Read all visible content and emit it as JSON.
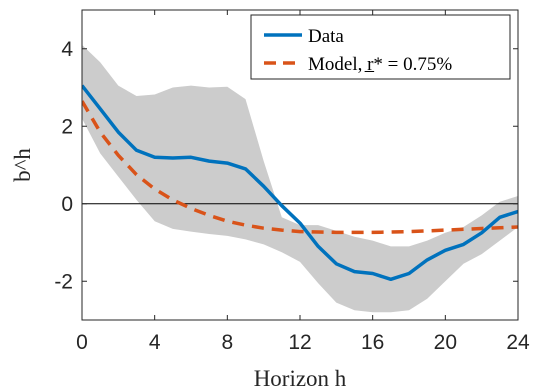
{
  "chart_data": {
    "type": "line",
    "xlabel": "Horizon h",
    "ylabel": "b^h",
    "xlim": [
      0,
      24
    ],
    "ylim": [
      -3,
      5
    ],
    "xticks": [
      0,
      4,
      8,
      12,
      16,
      20,
      24
    ],
    "xtick_labels": [
      "0",
      "4",
      "8",
      "12",
      "16",
      "20",
      "24"
    ],
    "yticks": [
      -2,
      0,
      2,
      4
    ],
    "ytick_labels": [
      "-2",
      "0",
      "2",
      "4"
    ],
    "grid": false,
    "legend_position": "top-right",
    "zero_line": 0,
    "x": [
      0,
      1,
      2,
      3,
      4,
      5,
      6,
      7,
      8,
      9,
      10,
      11,
      12,
      13,
      14,
      15,
      16,
      17,
      18,
      19,
      20,
      21,
      22,
      23,
      24
    ],
    "series": [
      {
        "name": "Data",
        "style": "solid",
        "color": "#0072BD",
        "values": [
          3.05,
          2.45,
          1.85,
          1.38,
          1.2,
          1.18,
          1.2,
          1.1,
          1.05,
          0.9,
          0.45,
          -0.05,
          -0.5,
          -1.1,
          -1.55,
          -1.75,
          -1.8,
          -1.95,
          -1.8,
          -1.45,
          -1.2,
          -1.05,
          -0.75,
          -0.35,
          -0.2
        ]
      },
      {
        "name": "Model, r̲* = 0.75%",
        "style": "dashed",
        "color": "#D95319",
        "values": [
          2.65,
          1.85,
          1.25,
          0.75,
          0.38,
          0.1,
          -0.12,
          -0.3,
          -0.45,
          -0.55,
          -0.63,
          -0.68,
          -0.72,
          -0.73,
          -0.74,
          -0.74,
          -0.74,
          -0.73,
          -0.72,
          -0.7,
          -0.68,
          -0.66,
          -0.64,
          -0.62,
          -0.6
        ]
      }
    ],
    "band": {
      "color": "#CCCCCC",
      "upper": [
        4.1,
        3.65,
        3.05,
        2.78,
        2.82,
        3.0,
        3.05,
        3.0,
        3.02,
        2.7,
        1.1,
        -0.35,
        -0.55,
        -0.55,
        -0.7,
        -0.85,
        -0.95,
        -1.1,
        -1.1,
        -0.95,
        -0.75,
        -0.6,
        -0.3,
        0.05,
        0.2
      ],
      "lower": [
        2.2,
        1.3,
        0.7,
        0.1,
        -0.45,
        -0.65,
        -0.72,
        -0.78,
        -0.83,
        -0.92,
        -1.05,
        -1.25,
        -1.5,
        -2.05,
        -2.55,
        -2.75,
        -2.8,
        -2.8,
        -2.75,
        -2.45,
        -2.0,
        -1.55,
        -1.3,
        -0.95,
        -0.6
      ]
    }
  }
}
